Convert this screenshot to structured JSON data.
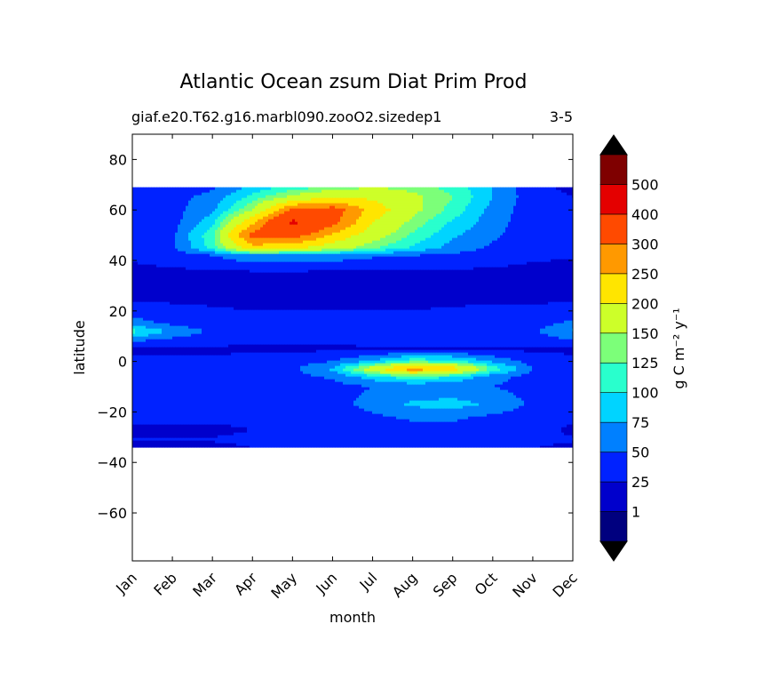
{
  "chart_data": {
    "type": "heatmap",
    "title": "Atlantic Ocean zsum Diat Prim Prod",
    "subtitle_left": "giaf.e20.T62.g16.marbl090.zooO2.sizedep1",
    "subtitle_right": "3-5",
    "xlabel": "month",
    "ylabel": "latitude",
    "x_ticks": [
      "Jan",
      "Feb",
      "Mar",
      "Apr",
      "May",
      "Jun",
      "Jul",
      "Aug",
      "Sep",
      "Oct",
      "Nov",
      "Dec"
    ],
    "y_ticks": [
      80,
      60,
      40,
      20,
      0,
      -20,
      -40,
      -60
    ],
    "ylim": [
      -79,
      90
    ],
    "data_lat_range": [
      -34,
      69
    ],
    "colorbar": {
      "label": "g C m⁻² y⁻¹",
      "ticks": [
        "1",
        "25",
        "50",
        "75",
        "100",
        "125",
        "150",
        "200",
        "250",
        "300",
        "400",
        "500"
      ],
      "colors": [
        "#00007f",
        "#0000cc",
        "#0022ff",
        "#0080ff",
        "#00d4ff",
        "#29ffcd",
        "#7cff79",
        "#cdff29",
        "#ffe500",
        "#ff9900",
        "#ff4a00",
        "#e40000",
        "#7f0000"
      ],
      "extend_colors": [
        "#000000",
        "#000000"
      ]
    },
    "z_levels": [
      1,
      25,
      50,
      75,
      100,
      125,
      150,
      200,
      250,
      300,
      400,
      500
    ],
    "field": [
      {
        "lat": 69,
        "values": [
          25,
          30,
          45,
          80,
          110,
          130,
          150,
          140,
          115,
          75,
          30,
          20
        ]
      },
      {
        "lat": 65,
        "values": [
          30,
          40,
          60,
          110,
          160,
          200,
          190,
          160,
          125,
          75,
          35,
          25
        ]
      },
      {
        "lat": 60,
        "values": [
          35,
          40,
          70,
          150,
          310,
          330,
          230,
          160,
          115,
          65,
          35,
          30
        ]
      },
      {
        "lat": 55,
        "values": [
          35,
          40,
          90,
          240,
          420,
          320,
          200,
          140,
          95,
          60,
          35,
          30
        ]
      },
      {
        "lat": 50,
        "values": [
          35,
          45,
          120,
          320,
          330,
          240,
          170,
          120,
          80,
          55,
          35,
          30
        ]
      },
      {
        "lat": 45,
        "values": [
          30,
          45,
          110,
          230,
          210,
          170,
          130,
          95,
          65,
          45,
          30,
          28
        ]
      },
      {
        "lat": 42,
        "values": [
          28,
          35,
          50,
          70,
          70,
          65,
          55,
          50,
          45,
          35,
          28,
          26
        ]
      },
      {
        "lat": 35,
        "values": [
          20,
          20,
          20,
          20,
          20,
          20,
          20,
          20,
          20,
          20,
          20,
          20
        ]
      },
      {
        "lat": 25,
        "values": [
          20,
          20,
          20,
          20,
          20,
          20,
          20,
          20,
          20,
          20,
          20,
          20
        ]
      },
      {
        "lat": 15,
        "values": [
          60,
          45,
          35,
          30,
          30,
          30,
          30,
          30,
          35,
          40,
          40,
          55
        ]
      },
      {
        "lat": 12,
        "values": [
          110,
          70,
          45,
          35,
          35,
          35,
          40,
          45,
          45,
          45,
          45,
          80
        ]
      },
      {
        "lat": 8,
        "values": [
          50,
          40,
          35,
          30,
          30,
          30,
          35,
          40,
          40,
          40,
          35,
          45
        ]
      },
      {
        "lat": 5,
        "values": [
          20,
          20,
          20,
          20,
          20,
          20,
          20,
          20,
          20,
          20,
          20,
          20
        ]
      },
      {
        "lat": 0,
        "values": [
          30,
          30,
          30,
          35,
          40,
          50,
          80,
          120,
          110,
          70,
          40,
          30
        ]
      },
      {
        "lat": -3,
        "values": [
          30,
          30,
          30,
          35,
          45,
          80,
          180,
          280,
          230,
          120,
          50,
          30
        ]
      },
      {
        "lat": -6,
        "values": [
          30,
          30,
          30,
          35,
          40,
          55,
          90,
          120,
          100,
          60,
          40,
          30
        ]
      },
      {
        "lat": -10,
        "values": [
          30,
          30,
          30,
          30,
          35,
          40,
          50,
          55,
          55,
          50,
          40,
          30
        ]
      },
      {
        "lat": -17,
        "values": [
          30,
          30,
          30,
          30,
          35,
          40,
          60,
          80,
          85,
          70,
          45,
          30
        ]
      },
      {
        "lat": -22,
        "values": [
          28,
          28,
          28,
          30,
          30,
          35,
          45,
          55,
          55,
          45,
          35,
          28
        ]
      },
      {
        "lat": -27,
        "values": [
          22,
          22,
          22,
          25,
          25,
          30,
          35,
          40,
          40,
          35,
          30,
          22
        ]
      },
      {
        "lat": -31,
        "values": [
          26,
          26,
          26,
          28,
          28,
          30,
          35,
          45,
          50,
          40,
          30,
          26
        ]
      },
      {
        "lat": -34,
        "values": [
          22,
          22,
          22,
          25,
          25,
          28,
          30,
          35,
          35,
          30,
          25,
          22
        ]
      }
    ]
  }
}
